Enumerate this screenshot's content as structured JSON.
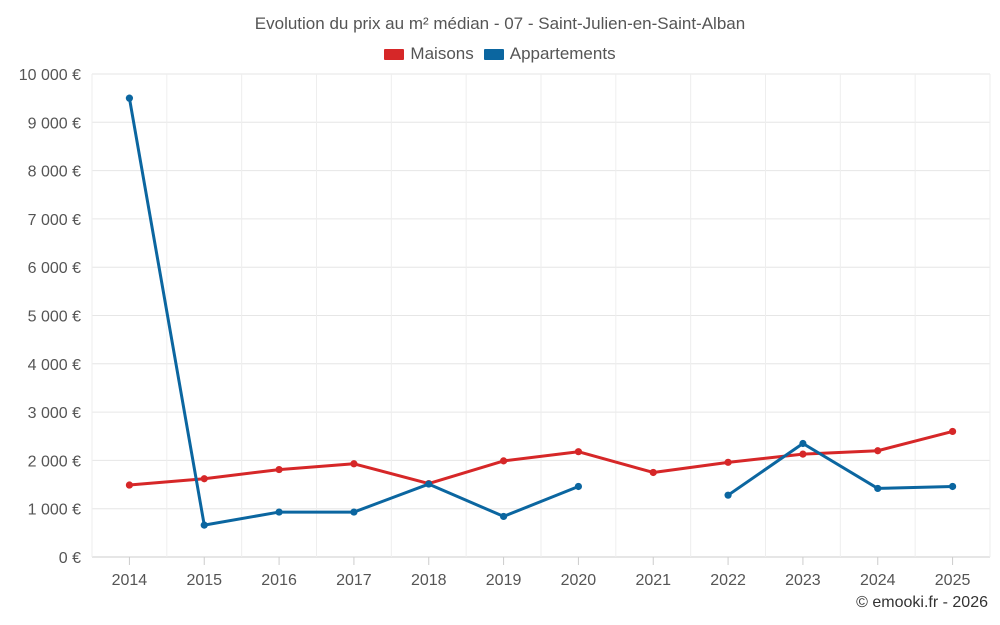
{
  "chart_data": {
    "type": "line",
    "title": "Evolution du prix au m² médian - 07 - Saint-Julien-en-Saint-Alban",
    "categories": [
      "2014",
      "2015",
      "2016",
      "2017",
      "2018",
      "2019",
      "2020",
      "2021",
      "2022",
      "2023",
      "2024",
      "2025"
    ],
    "ylim": [
      0,
      10000
    ],
    "yticks": [
      "0 €",
      "1 000 €",
      "2 000 €",
      "3 000 €",
      "4 000 €",
      "5 000 €",
      "6 000 €",
      "7 000 €",
      "8 000 €",
      "9 000 €",
      "10 000 €"
    ],
    "grid": true,
    "legend_position": "top-center",
    "series": [
      {
        "name": "Maisons",
        "color": "#d62728",
        "values": [
          1490,
          1620,
          1810,
          1930,
          1520,
          1990,
          2180,
          1750,
          1960,
          2130,
          2200,
          2600
        ]
      },
      {
        "name": "Appartements",
        "color": "#0b66a0",
        "values": [
          9500,
          660,
          930,
          930,
          1510,
          840,
          1460,
          null,
          1280,
          2350,
          1420,
          1460
        ]
      }
    ]
  },
  "credit": "© emooki.fr - 2026"
}
